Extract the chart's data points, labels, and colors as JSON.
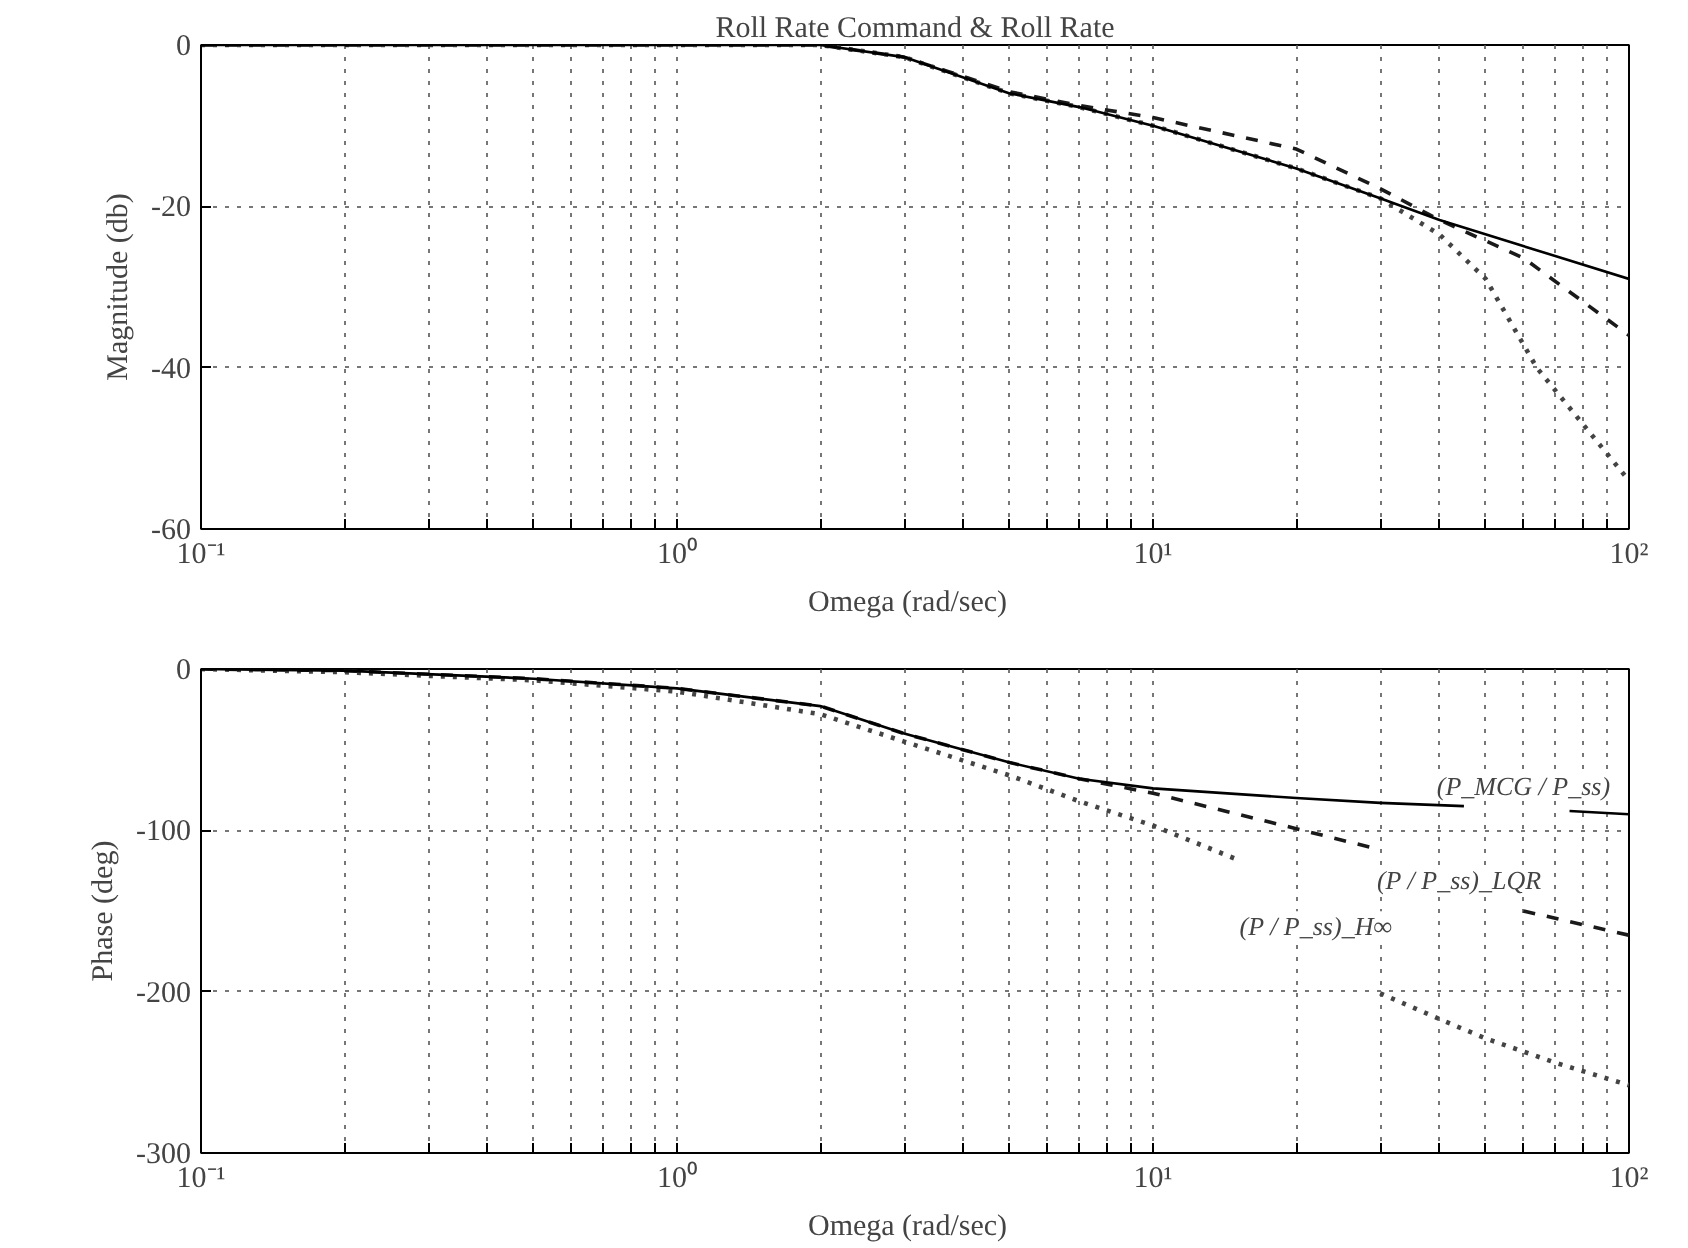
{
  "chart_data": [
    {
      "type": "line",
      "title": "Roll Rate Command & Roll Rate",
      "xlabel": "Omega   (rad/sec)",
      "ylabel": "Magnitude (db)",
      "log": "x",
      "grid": true,
      "xlim": [
        0.1,
        100
      ],
      "ylim": [
        -60,
        0
      ],
      "xticks": [
        {
          "value": 0.1,
          "label": "10⁻¹"
        },
        {
          "value": 0.2,
          "label": null
        },
        {
          "value": 0.3,
          "label": null
        },
        {
          "value": 0.4,
          "label": null
        },
        {
          "value": 0.5,
          "label": null
        },
        {
          "value": 0.6,
          "label": null
        },
        {
          "value": 0.7,
          "label": null
        },
        {
          "value": 0.8,
          "label": null
        },
        {
          "value": 0.9,
          "label": null
        },
        {
          "value": 1,
          "label": "10⁰"
        },
        {
          "value": 2,
          "label": null
        },
        {
          "value": 3,
          "label": null
        },
        {
          "value": 4,
          "label": null
        },
        {
          "value": 5,
          "label": null
        },
        {
          "value": 6,
          "label": null
        },
        {
          "value": 7,
          "label": null
        },
        {
          "value": 8,
          "label": null
        },
        {
          "value": 9,
          "label": null
        },
        {
          "value": 10,
          "label": "10¹"
        },
        {
          "value": 20,
          "label": null
        },
        {
          "value": 30,
          "label": null
        },
        {
          "value": 40,
          "label": null
        },
        {
          "value": 50,
          "label": null
        },
        {
          "value": 60,
          "label": null
        },
        {
          "value": 70,
          "label": null
        },
        {
          "value": 80,
          "label": null
        },
        {
          "value": 90,
          "label": null
        },
        {
          "value": 100,
          "label": "10²"
        }
      ],
      "yticks": [
        0,
        -20,
        -40,
        -60
      ],
      "series": [
        {
          "color": "#000000",
          "line_style": "solid",
          "x": [
            0.1,
            1,
            2,
            3,
            5,
            7,
            10,
            20,
            30,
            40,
            100
          ],
          "values": [
            0,
            0,
            0,
            -1.5,
            -6,
            -7.7,
            -10,
            -15.3,
            -19,
            -21.7,
            -29
          ]
        },
        {
          "color": "#1a1a1a",
          "line_style": "dashed",
          "x": [
            0.1,
            1,
            2,
            3,
            5,
            7,
            10,
            20,
            30,
            40,
            60,
            100
          ],
          "values": [
            0,
            0,
            0,
            -1.5,
            -5.8,
            -7.5,
            -9,
            -12.9,
            -17.8,
            -21.7,
            -26.4,
            -36
          ]
        },
        {
          "color": "#444444",
          "line_style": "dotted",
          "x": [
            0.1,
            1,
            2,
            3,
            5,
            7,
            10,
            20,
            30,
            40,
            50,
            64,
            80,
            100
          ],
          "values": [
            0,
            0,
            0,
            -1.5,
            -6,
            -7.7,
            -10,
            -15.3,
            -19,
            -23.5,
            -29,
            -40,
            -47,
            -54
          ]
        }
      ]
    },
    {
      "type": "line",
      "xlabel": "Omega   (rad/sec)",
      "ylabel": "Phase (deg)",
      "log": "x",
      "grid": true,
      "xlim": [
        0.1,
        100
      ],
      "ylim": [
        -300,
        0
      ],
      "xticks": [
        {
          "value": 0.1,
          "label": "10⁻¹"
        },
        {
          "value": 0.2,
          "label": null
        },
        {
          "value": 0.3,
          "label": null
        },
        {
          "value": 0.4,
          "label": null
        },
        {
          "value": 0.5,
          "label": null
        },
        {
          "value": 0.6,
          "label": null
        },
        {
          "value": 0.7,
          "label": null
        },
        {
          "value": 0.8,
          "label": null
        },
        {
          "value": 0.9,
          "label": null
        },
        {
          "value": 1,
          "label": "10⁰"
        },
        {
          "value": 2,
          "label": null
        },
        {
          "value": 3,
          "label": null
        },
        {
          "value": 4,
          "label": null
        },
        {
          "value": 5,
          "label": null
        },
        {
          "value": 6,
          "label": null
        },
        {
          "value": 7,
          "label": null
        },
        {
          "value": 8,
          "label": null
        },
        {
          "value": 9,
          "label": null
        },
        {
          "value": 10,
          "label": "10¹"
        },
        {
          "value": 20,
          "label": null
        },
        {
          "value": 30,
          "label": null
        },
        {
          "value": 40,
          "label": null
        },
        {
          "value": 50,
          "label": null
        },
        {
          "value": 60,
          "label": null
        },
        {
          "value": 70,
          "label": null
        },
        {
          "value": 80,
          "label": null
        },
        {
          "value": 90,
          "label": null
        },
        {
          "value": 100,
          "label": "10²"
        }
      ],
      "yticks": [
        0,
        -100,
        -200,
        -300
      ],
      "series": [
        {
          "name": "(P_MCG / P_ss)",
          "color": "#000000",
          "line_style": "solid",
          "x": [
            0.1,
            0.2,
            0.5,
            1,
            2,
            3,
            5,
            7,
            10,
            20,
            30,
            45,
            60,
            75,
            100
          ],
          "values": [
            0,
            -1,
            -6,
            -12,
            -23,
            -40,
            -58,
            -68,
            -74,
            -80,
            -83,
            -85,
            null,
            -88,
            -90
          ]
        },
        {
          "name": "(P / P_ss)_LQR",
          "color": "#1a1a1a",
          "line_style": "dashed",
          "x": [
            0.1,
            0.2,
            0.5,
            1,
            2,
            3,
            5,
            7,
            10,
            20,
            30,
            44,
            60,
            100
          ],
          "values": [
            0,
            -1,
            -6,
            -12,
            -23,
            -40,
            -58,
            -68,
            -77,
            -99,
            -112,
            null,
            -150,
            -165
          ]
        },
        {
          "name": "(P / P_ss)_H∞",
          "color": "#444444",
          "line_style": "dotted",
          "x": [
            0.1,
            0.2,
            0.5,
            1,
            2,
            3,
            5,
            7,
            10,
            15,
            22,
            30,
            40,
            50,
            70,
            100
          ],
          "values": [
            0,
            -2,
            -7,
            -14,
            -28,
            -45,
            -66,
            -82,
            -97,
            -118,
            null,
            -201,
            -217,
            -229,
            -244,
            -258
          ]
        }
      ]
    }
  ]
}
